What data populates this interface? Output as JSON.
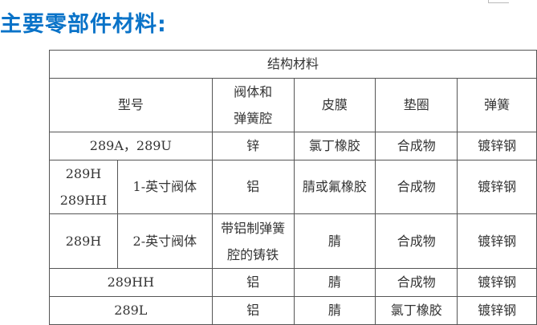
{
  "title": "主要零部件材料:",
  "table": {
    "caption": "结构材料",
    "headers": {
      "model": "型号",
      "body_line1": "阀体和",
      "body_line2": "弹簧腔",
      "diaphragm": "皮膜",
      "gasket": "垫圈",
      "spring": "弹簧"
    },
    "rows": [
      {
        "model": "289A，289U",
        "body": "锌",
        "diaphragm": "氯丁橡胶",
        "gasket": "合成物",
        "spring": "镀锌钢"
      },
      {
        "model_line1": "289H",
        "model_line2": "289HH",
        "size": "1-英寸阀体",
        "body": "铝",
        "diaphragm": "腈或氟橡胶",
        "gasket": "合成物",
        "spring": "镀锌钢"
      },
      {
        "model": "289H",
        "size": "2-英寸阀体",
        "body_line1": "带铝制弹簧",
        "body_line2": "腔的铸铁",
        "diaphragm": "腈",
        "gasket": "合成物",
        "spring": "镀锌钢"
      },
      {
        "model": "289HH",
        "body": "铝",
        "diaphragm": "腈",
        "gasket": "合成物",
        "spring": "镀锌钢"
      },
      {
        "model": "289L",
        "body": "铝",
        "diaphragm": "腈",
        "gasket": "氯丁橡胶",
        "spring": "镀锌钢"
      }
    ]
  }
}
